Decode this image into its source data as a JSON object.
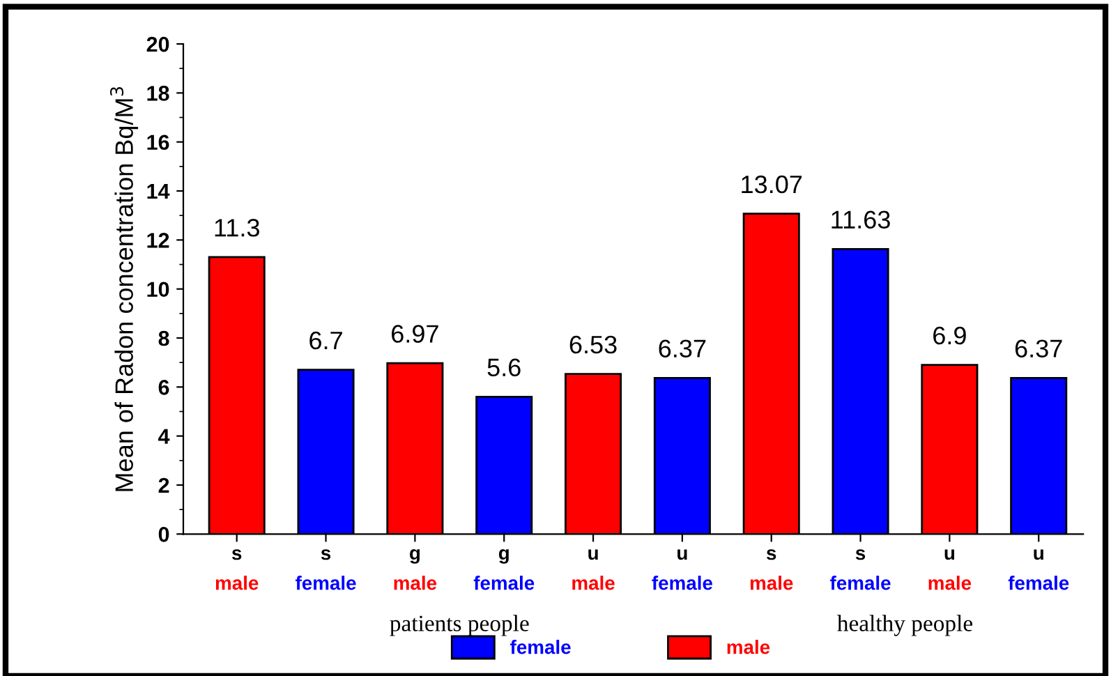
{
  "chart_data": {
    "type": "bar",
    "ylabel": "Mean of Radon concentration Bq/M$^{3}$",
    "categories": [
      "s",
      "s",
      "g",
      "g",
      "u",
      "u",
      "s",
      "s",
      "u",
      "u"
    ],
    "series": [
      {
        "name": "male",
        "color": "#ff0000",
        "values": [
          11.3,
          null,
          6.97,
          null,
          6.53,
          null,
          13.07,
          null,
          6.9,
          null
        ]
      },
      {
        "name": "female",
        "color": "#0000ff",
        "values": [
          null,
          6.7,
          null,
          5.6,
          null,
          6.37,
          null,
          11.63,
          null,
          6.37
        ]
      }
    ],
    "annotations": [
      "patients people",
      "healthy people"
    ],
    "ylim": [
      0,
      20
    ],
    "yticks": [
      0,
      2,
      4,
      6,
      8,
      10,
      12,
      14,
      16,
      18,
      20
    ],
    "data_labels": true,
    "grid": false,
    "legend": "bottom"
  }
}
